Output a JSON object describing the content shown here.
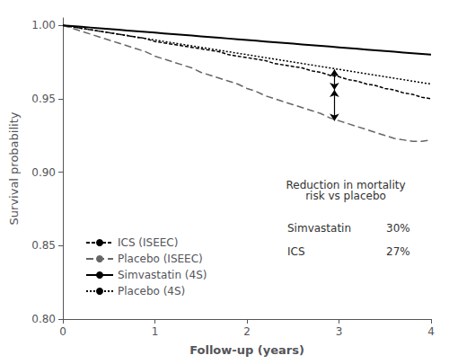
{
  "chart_data": {
    "type": "line",
    "xlabel": "Follow-up (years)",
    "ylabel": "Survival probability",
    "xlim": [
      0,
      4
    ],
    "ylim": [
      0.8,
      1.005
    ],
    "xticks": [
      0,
      1,
      2,
      3,
      4
    ],
    "yticks": [
      {
        "value": 0.8,
        "label": "0.80"
      },
      0.85,
      {
        "value": 0.9,
        "label": "0.90"
      },
      0.95,
      {
        "value": 1.0,
        "label": "1.00"
      }
    ],
    "grid": false,
    "legend": "lower left",
    "x": [
      0,
      0.1,
      0.2,
      0.3,
      0.4,
      0.5,
      0.6,
      0.7,
      0.8,
      0.9,
      1.0,
      1.1,
      1.2,
      1.3,
      1.4,
      1.5,
      1.6,
      1.7,
      1.8,
      1.9,
      2.0,
      2.1,
      2.2,
      2.3,
      2.4,
      2.5,
      2.6,
      2.7,
      2.8,
      2.9,
      3.0,
      3.1,
      3.2,
      3.3,
      3.4,
      3.5,
      3.6,
      3.7,
      3.8,
      3.9,
      4.0
    ],
    "series": [
      {
        "name": "ICS (ISEEC)",
        "color": "#000000",
        "line_style": "dashed",
        "values": [
          1.0,
          0.999,
          0.998,
          0.997,
          0.996,
          0.995,
          0.994,
          0.993,
          0.992,
          0.991,
          0.989,
          0.988,
          0.987,
          0.986,
          0.985,
          0.984,
          0.983,
          0.982,
          0.98,
          0.979,
          0.978,
          0.977,
          0.976,
          0.974,
          0.973,
          0.972,
          0.971,
          0.969,
          0.968,
          0.966,
          0.965,
          0.963,
          0.962,
          0.96,
          0.959,
          0.957,
          0.956,
          0.954,
          0.953,
          0.951,
          0.95
        ]
      },
      {
        "name": "Placebo (ISEEC)",
        "color": "#666666",
        "line_style": "long_dashed",
        "values": [
          1.0,
          0.998,
          0.996,
          0.994,
          0.992,
          0.99,
          0.988,
          0.986,
          0.984,
          0.982,
          0.979,
          0.977,
          0.975,
          0.973,
          0.971,
          0.968,
          0.966,
          0.964,
          0.962,
          0.96,
          0.957,
          0.955,
          0.952,
          0.95,
          0.948,
          0.946,
          0.944,
          0.942,
          0.94,
          0.937,
          0.935,
          0.933,
          0.931,
          0.929,
          0.927,
          0.925,
          0.923,
          0.922,
          0.921,
          0.921,
          0.922
        ]
      },
      {
        "name": "Simvastatin (4S)",
        "color": "#000000",
        "line_style": "solid",
        "values": [
          1.0,
          0.9995,
          0.999,
          0.9985,
          0.998,
          0.9975,
          0.997,
          0.9965,
          0.996,
          0.9955,
          0.995,
          0.9945,
          0.994,
          0.9935,
          0.993,
          0.9925,
          0.992,
          0.9915,
          0.991,
          0.9905,
          0.99,
          0.9895,
          0.989,
          0.9885,
          0.988,
          0.9875,
          0.987,
          0.9865,
          0.986,
          0.9855,
          0.985,
          0.9845,
          0.984,
          0.9835,
          0.983,
          0.9825,
          0.982,
          0.9815,
          0.981,
          0.9805,
          0.98
        ]
      },
      {
        "name": "Placebo (4S)",
        "color": "#000000",
        "line_style": "dotted",
        "values": [
          1.0,
          0.999,
          0.998,
          0.997,
          0.996,
          0.995,
          0.994,
          0.993,
          0.992,
          0.991,
          0.99,
          0.989,
          0.988,
          0.987,
          0.986,
          0.985,
          0.984,
          0.983,
          0.982,
          0.981,
          0.98,
          0.979,
          0.978,
          0.977,
          0.976,
          0.975,
          0.974,
          0.973,
          0.972,
          0.971,
          0.97,
          0.969,
          0.968,
          0.967,
          0.966,
          0.965,
          0.964,
          0.963,
          0.962,
          0.961,
          0.96
        ]
      }
    ],
    "arrows": [
      {
        "x": 2.95,
        "y_top": 0.97,
        "y_bottom": 0.956
      },
      {
        "x": 2.95,
        "y_top": 0.956,
        "y_bottom": 0.935
      }
    ],
    "annotations": [
      "Reduction in mortality\nrisk vs placebo",
      "Simvastatin",
      "30%",
      "ICS",
      "27%"
    ]
  }
}
